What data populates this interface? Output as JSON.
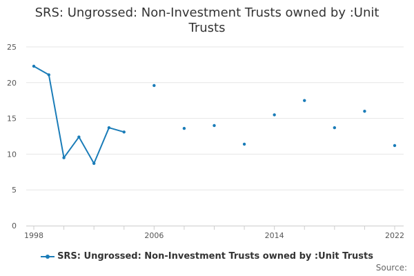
{
  "chart_data": {
    "type": "line",
    "title": "SRS: Ungrossed: Non-Investment Trusts owned by :Unit Trusts",
    "title_lines": [
      "SRS: Ungrossed: Non-Investment Trusts owned by :Unit",
      "Trusts"
    ],
    "xlabel": "",
    "ylabel": "",
    "xlim": [
      1998,
      2022
    ],
    "ylim": [
      0,
      25
    ],
    "yticks": [
      0,
      5,
      10,
      15,
      20,
      25
    ],
    "xtick_labels": [
      1998,
      2006,
      2014,
      2022
    ],
    "x_minor_ticks": [
      1998,
      2000,
      2002,
      2004,
      2006,
      2008,
      2010,
      2012,
      2014,
      2016,
      2018,
      2020,
      2022
    ],
    "grid": true,
    "legend_position": "bottom",
    "series": [
      {
        "name": "SRS: Ungrossed: Non-Investment Trusts owned by :Unit Trusts",
        "color": "#1a7cb8",
        "points": [
          {
            "x": 1998,
            "y": 22.3
          },
          {
            "x": 1999,
            "y": 21.1
          },
          {
            "x": 2000,
            "y": 9.5
          },
          {
            "x": 2001,
            "y": 12.4
          },
          {
            "x": 2002,
            "y": 8.7
          },
          {
            "x": 2003,
            "y": 13.7
          },
          {
            "x": 2004,
            "y": 13.1
          },
          {
            "x": 2006,
            "y": 19.6
          },
          {
            "x": 2008,
            "y": 13.6
          },
          {
            "x": 2010,
            "y": 14.0
          },
          {
            "x": 2012,
            "y": 11.4
          },
          {
            "x": 2014,
            "y": 15.5
          },
          {
            "x": 2016,
            "y": 17.5
          },
          {
            "x": 2018,
            "y": 13.7
          },
          {
            "x": 2020,
            "y": 16.0
          },
          {
            "x": 2022,
            "y": 11.2
          }
        ]
      }
    ]
  },
  "source_label": "Source:"
}
